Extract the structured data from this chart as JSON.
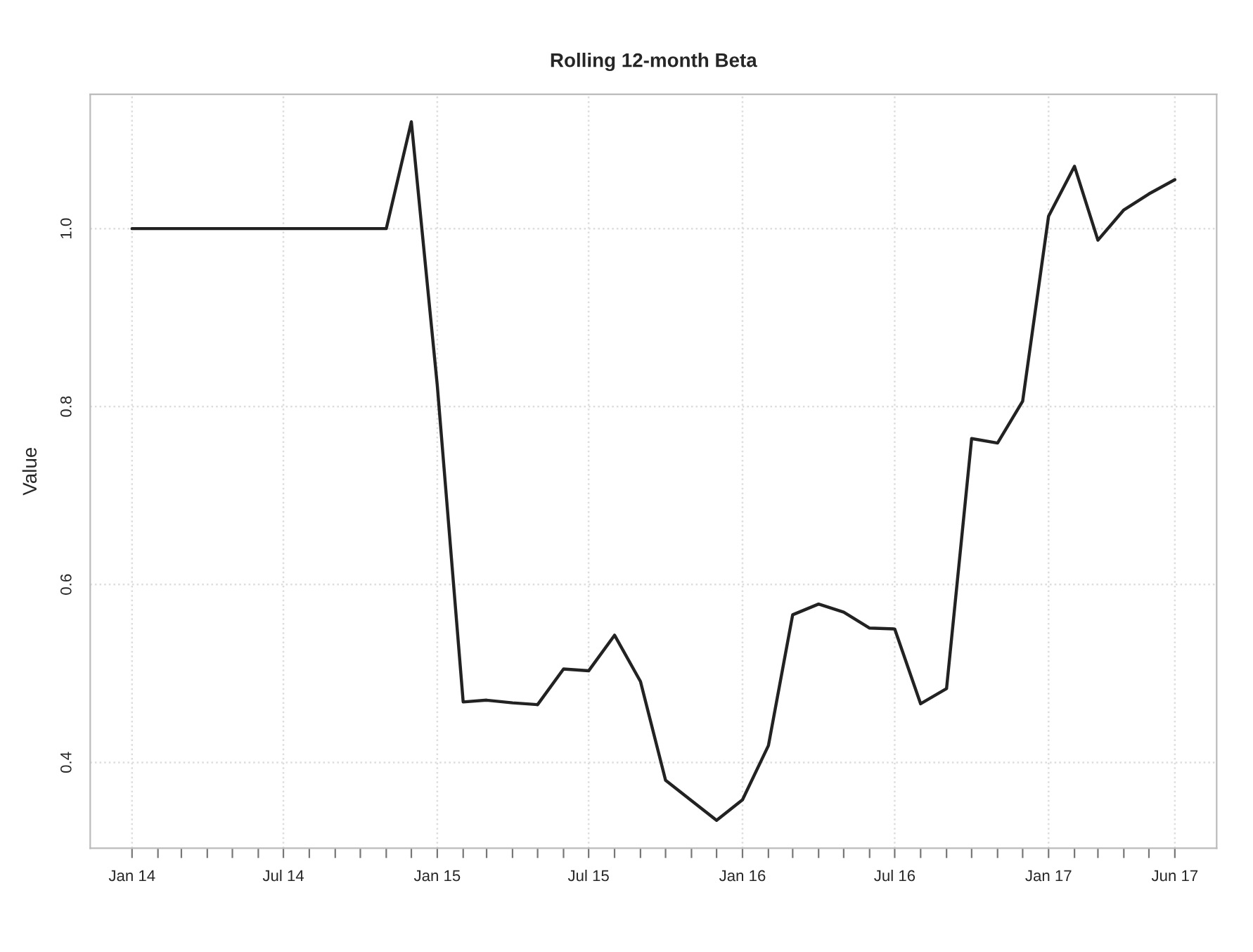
{
  "chart_data": {
    "type": "line",
    "title": "Rolling 12-month Beta",
    "ylabel": "Value",
    "x": [
      "2014-01",
      "2014-02",
      "2014-03",
      "2014-04",
      "2014-05",
      "2014-06",
      "2014-07",
      "2014-08",
      "2014-09",
      "2014-10",
      "2014-11",
      "2014-12",
      "2015-01",
      "2015-02",
      "2015-03",
      "2015-04",
      "2015-05",
      "2015-06",
      "2015-07",
      "2015-08",
      "2015-09",
      "2015-10",
      "2015-11",
      "2015-12",
      "2016-01",
      "2016-02",
      "2016-03",
      "2016-04",
      "2016-05",
      "2016-06",
      "2016-07",
      "2016-08",
      "2016-09",
      "2016-10",
      "2016-11",
      "2016-12",
      "2017-01",
      "2017-02",
      "2017-03",
      "2017-04",
      "2017-05",
      "2017-06"
    ],
    "series": [
      {
        "color": "#222222",
        "values": [
          1.0,
          1.0,
          1.0,
          1.0,
          1.0,
          1.0,
          1.0,
          1.0,
          1.0,
          1.0,
          1.0,
          1.12,
          0.824,
          0.468,
          0.47,
          0.467,
          0.465,
          0.505,
          0.503,
          0.543,
          0.491,
          0.38,
          0.357,
          0.335,
          0.358,
          0.419,
          0.566,
          0.578,
          0.569,
          0.551,
          0.55,
          0.466,
          0.483,
          0.764,
          0.759,
          0.806,
          1.014,
          1.07,
          0.987,
          1.021,
          1.039,
          1.055
        ]
      }
    ],
    "xlim": [
      "2013-11-12",
      "2017-07-21"
    ],
    "xticks": [
      {
        "value": "2014-01",
        "label": "Jan 14"
      },
      {
        "value": "2014-02",
        "label": null
      },
      {
        "value": "2014-03",
        "label": null
      },
      {
        "value": "2014-04",
        "label": null
      },
      {
        "value": "2014-05",
        "label": null
      },
      {
        "value": "2014-06",
        "label": null
      },
      {
        "value": "2014-07",
        "label": "Jul 14"
      },
      {
        "value": "2014-08",
        "label": null
      },
      {
        "value": "2014-09",
        "label": null
      },
      {
        "value": "2014-10",
        "label": null
      },
      {
        "value": "2014-11",
        "label": null
      },
      {
        "value": "2014-12",
        "label": null
      },
      {
        "value": "2015-01",
        "label": "Jan 15"
      },
      {
        "value": "2015-02",
        "label": null
      },
      {
        "value": "2015-03",
        "label": null
      },
      {
        "value": "2015-04",
        "label": null
      },
      {
        "value": "2015-05",
        "label": null
      },
      {
        "value": "2015-06",
        "label": null
      },
      {
        "value": "2015-07",
        "label": "Jul 15"
      },
      {
        "value": "2015-08",
        "label": null
      },
      {
        "value": "2015-09",
        "label": null
      },
      {
        "value": "2015-10",
        "label": null
      },
      {
        "value": "2015-11",
        "label": null
      },
      {
        "value": "2015-12",
        "label": null
      },
      {
        "value": "2016-01",
        "label": "Jan 16"
      },
      {
        "value": "2016-02",
        "label": null
      },
      {
        "value": "2016-03",
        "label": null
      },
      {
        "value": "2016-04",
        "label": null
      },
      {
        "value": "2016-05",
        "label": null
      },
      {
        "value": "2016-06",
        "label": null
      },
      {
        "value": "2016-07",
        "label": "Jul 16"
      },
      {
        "value": "2016-08",
        "label": null
      },
      {
        "value": "2016-09",
        "label": null
      },
      {
        "value": "2016-10",
        "label": null
      },
      {
        "value": "2016-11",
        "label": null
      },
      {
        "value": "2016-12",
        "label": null
      },
      {
        "value": "2017-01",
        "label": "Jan 17"
      },
      {
        "value": "2017-02",
        "label": null
      },
      {
        "value": "2017-03",
        "label": null
      },
      {
        "value": "2017-04",
        "label": null
      },
      {
        "value": "2017-05",
        "label": null
      },
      {
        "value": "2017-06",
        "label": "Jun 17"
      }
    ],
    "ylim": [
      0.3036,
      1.151
    ],
    "yticks": [
      0.4,
      0.6,
      0.8,
      {
        "value": 1.0,
        "label": "1.0"
      }
    ],
    "grid": true,
    "line_style": "solid",
    "marker": "none"
  }
}
